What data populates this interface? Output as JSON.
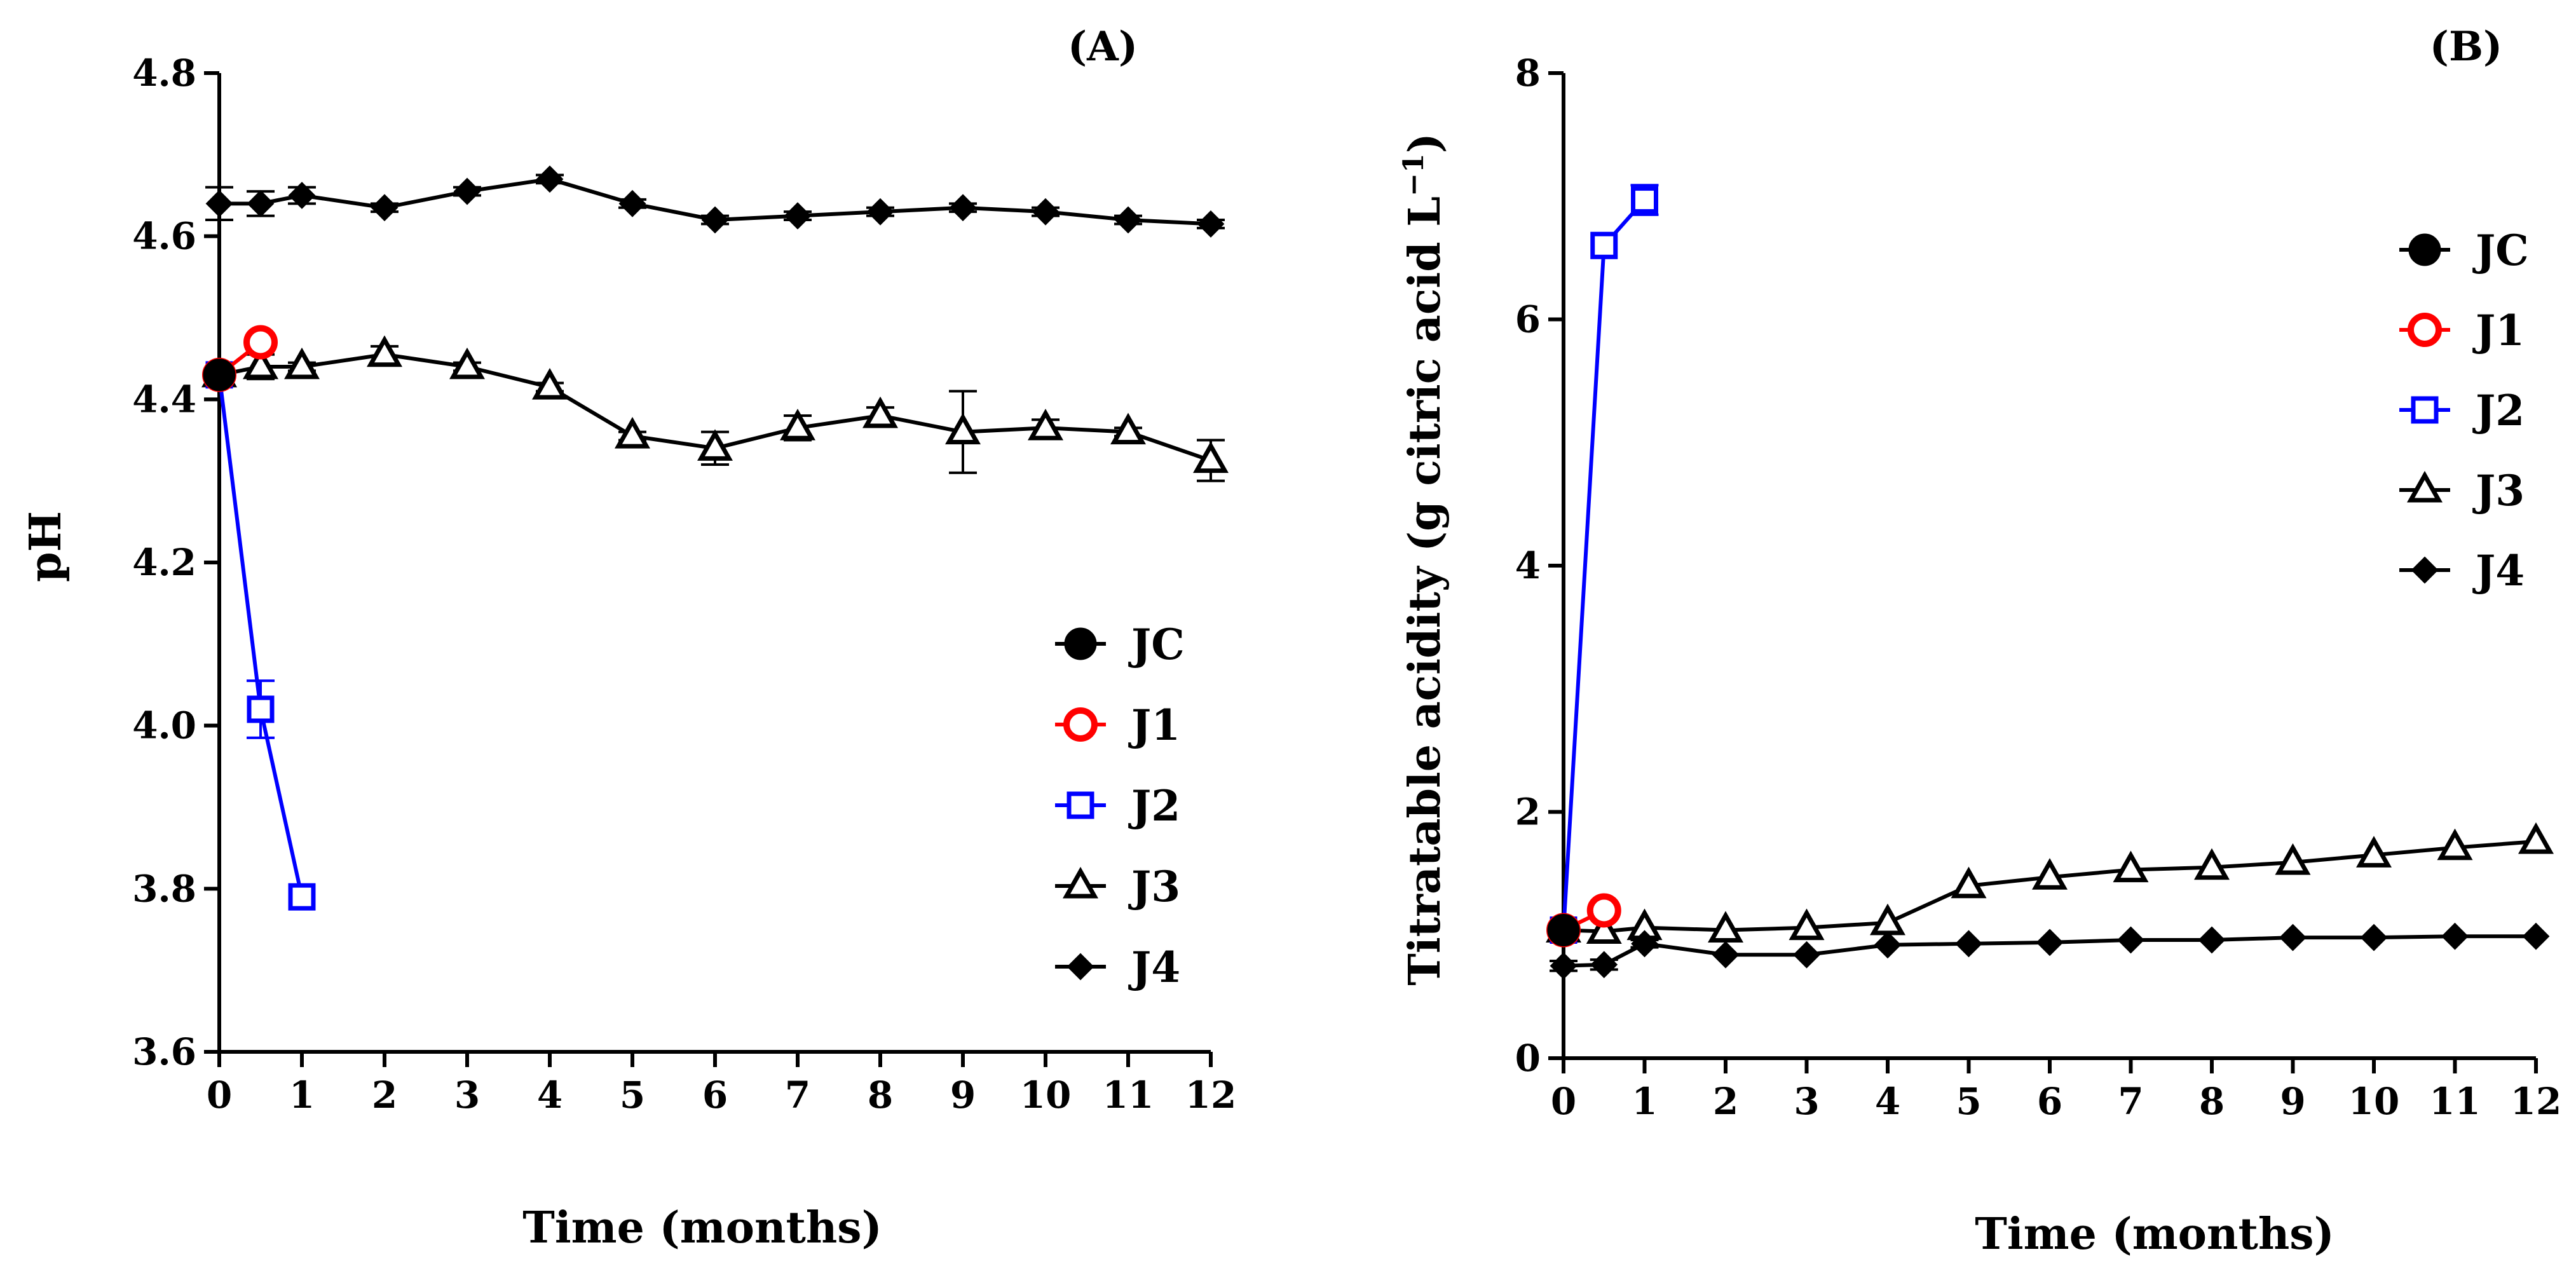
{
  "chart_data": [
    {
      "type": "line",
      "panel_label": "(A)",
      "title": "",
      "xlabel": "Time (months)",
      "ylabel": "pH",
      "xlim": [
        0,
        12
      ],
      "ylim": [
        3.6,
        4.8
      ],
      "xticks": [
        0,
        1,
        2,
        3,
        4,
        5,
        6,
        7,
        8,
        9,
        10,
        11,
        12
      ],
      "yticks": [
        "3.6",
        "3.8",
        "4.0",
        "4.2",
        "4.4",
        "4.6",
        "4.8"
      ],
      "legend_position": "lower-right",
      "series": [
        {
          "name": "JC",
          "color": "#000000",
          "marker": "circle-filled",
          "x": [
            0
          ],
          "y": [
            4.43
          ],
          "err": [
            0
          ]
        },
        {
          "name": "J1",
          "color": "#ff0000",
          "marker": "circle-open",
          "x": [
            0,
            0.5
          ],
          "y": [
            4.43,
            4.47
          ],
          "err": [
            0,
            0
          ]
        },
        {
          "name": "J2",
          "color": "#0000ff",
          "marker": "square-open",
          "x": [
            0,
            0.5,
            1
          ],
          "y": [
            4.43,
            4.02,
            3.79
          ],
          "err": [
            0,
            0.035,
            0
          ]
        },
        {
          "name": "J3",
          "color": "#000000",
          "marker": "triangle-open",
          "x": [
            0,
            0.5,
            1,
            2,
            3,
            4,
            5,
            6,
            7,
            8,
            9,
            10,
            11,
            12
          ],
          "y": [
            4.43,
            4.44,
            4.44,
            4.455,
            4.44,
            4.415,
            4.355,
            4.34,
            4.365,
            4.38,
            4.36,
            4.365,
            4.36,
            4.325
          ],
          "err": [
            0,
            0.015,
            0.005,
            0.01,
            0.005,
            0.005,
            0.005,
            0.02,
            0.015,
            0.01,
            0.05,
            0.01,
            0.005,
            0.025
          ]
        },
        {
          "name": "J4",
          "color": "#000000",
          "marker": "diamond-filled",
          "x": [
            0,
            0.5,
            1,
            2,
            3,
            4,
            5,
            6,
            7,
            8,
            9,
            10,
            11,
            12
          ],
          "y": [
            4.64,
            4.64,
            4.65,
            4.635,
            4.655,
            4.67,
            4.64,
            4.62,
            4.625,
            4.63,
            4.635,
            4.63,
            4.62,
            4.615
          ],
          "err": [
            0.02,
            0.015,
            0.01,
            0.005,
            0.005,
            0.005,
            0.005,
            0.005,
            0.005,
            0.005,
            0.005,
            0.005,
            0.005,
            0.005
          ]
        }
      ]
    },
    {
      "type": "line",
      "panel_label": "(B)",
      "title": "",
      "xlabel": "Time (months)",
      "ylabel": "Titratable acidity (g citric acid L",
      "ylabel_sup": "−1",
      "ylabel_end": ")",
      "xlim": [
        0,
        12
      ],
      "ylim": [
        0,
        8
      ],
      "xticks": [
        0,
        1,
        2,
        3,
        4,
        5,
        6,
        7,
        8,
        9,
        10,
        11,
        12
      ],
      "yticks": [
        "0",
        "2",
        "4",
        "6",
        "8"
      ],
      "legend_position": "upper-right",
      "series": [
        {
          "name": "JC",
          "color": "#000000",
          "marker": "circle-filled",
          "x": [
            0
          ],
          "y": [
            1.04
          ],
          "err": [
            0
          ]
        },
        {
          "name": "J1",
          "color": "#ff0000",
          "marker": "circle-open",
          "x": [
            0,
            0.5
          ],
          "y": [
            1.04,
            1.2
          ],
          "err": [
            0,
            0
          ]
        },
        {
          "name": "J2",
          "color": "#0000ff",
          "marker": "square-open",
          "x": [
            0,
            0.5,
            1
          ],
          "y": [
            1.04,
            6.6,
            6.97
          ],
          "err": [
            0,
            0,
            0.12
          ]
        },
        {
          "name": "J3",
          "color": "#000000",
          "marker": "triangle-open",
          "x": [
            0,
            0.5,
            1,
            2,
            3,
            4,
            5,
            6,
            7,
            8,
            9,
            10,
            11,
            12
          ],
          "y": [
            1.04,
            1.03,
            1.06,
            1.04,
            1.06,
            1.1,
            1.4,
            1.47,
            1.53,
            1.55,
            1.59,
            1.65,
            1.71,
            1.76
          ],
          "err": [
            0,
            0,
            0,
            0,
            0,
            0,
            0,
            0,
            0,
            0,
            0,
            0,
            0,
            0
          ]
        },
        {
          "name": "J4",
          "color": "#000000",
          "marker": "diamond-filled",
          "x": [
            0,
            0.5,
            1,
            2,
            3,
            4,
            5,
            6,
            7,
            8,
            9,
            10,
            11,
            12
          ],
          "y": [
            0.75,
            0.76,
            0.93,
            0.84,
            0.84,
            0.92,
            0.93,
            0.94,
            0.96,
            0.96,
            0.98,
            0.98,
            0.99,
            0.99
          ],
          "err": [
            0.04,
            0.04,
            0.03,
            0,
            0,
            0,
            0,
            0,
            0,
            0,
            0,
            0,
            0,
            0
          ]
        }
      ]
    }
  ]
}
